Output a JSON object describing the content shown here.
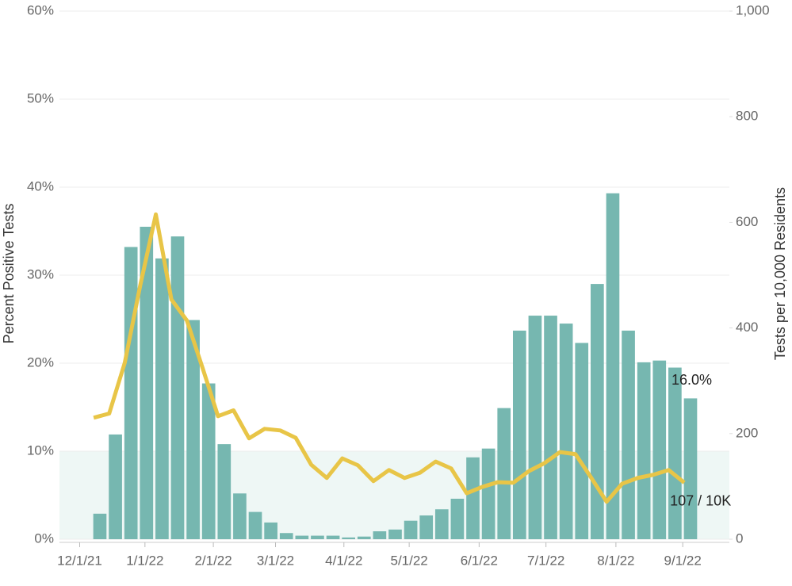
{
  "chart_data": {
    "type": "bar_line",
    "y_label": "Percent Positive Tests",
    "y2_label": "Tests per 10,000 Residents",
    "xlim": [
      -1.3,
      41.8
    ],
    "xticks": [
      {
        "value": 0,
        "label": "12/1/21"
      },
      {
        "value": 4.2,
        "label": "1/1/22"
      },
      {
        "value": 8.6,
        "label": "2/1/22"
      },
      {
        "value": 12.6,
        "label": "3/1/22"
      },
      {
        "value": 17.0,
        "label": "4/1/22"
      },
      {
        "value": 21.2,
        "label": "5/1/22"
      },
      {
        "value": 25.7,
        "label": "6/1/22"
      },
      {
        "value": 30.0,
        "label": "7/1/22"
      },
      {
        "value": 34.5,
        "label": "8/1/22"
      },
      {
        "value": 38.8,
        "label": "9/1/22"
      }
    ],
    "ylim": [
      0,
      60
    ],
    "yticks": [
      {
        "value": 0,
        "label": "0%"
      },
      {
        "value": 10,
        "label": "10%"
      },
      {
        "value": 20,
        "label": "20%"
      },
      {
        "value": 30,
        "label": "30%"
      },
      {
        "value": 40,
        "label": "40%"
      },
      {
        "value": 50,
        "label": "50%"
      },
      {
        "value": 60,
        "label": "60%"
      }
    ],
    "y2lim": [
      0,
      1000
    ],
    "y2ticks": [
      0,
      200,
      400,
      600,
      800,
      {
        "value": 1000,
        "label": "1,000"
      }
    ],
    "grid": true,
    "band": {
      "range": [
        0,
        10
      ],
      "color": "#eef7f5"
    },
    "series": [
      {
        "type": "bar",
        "color": "#76b7b0",
        "end_label": "16.0%",
        "x": [
          1.3,
          2.3,
          3.3,
          4.3,
          5.3,
          6.3,
          7.3,
          8.3,
          9.3,
          10.3,
          11.3,
          12.3,
          13.3,
          14.3,
          15.3,
          16.3,
          17.3,
          18.3,
          19.3,
          20.3,
          21.3,
          22.3,
          23.3,
          24.3,
          25.3,
          26.3,
          27.3,
          28.3,
          29.3,
          30.3,
          31.3,
          32.3,
          33.3,
          34.3,
          35.3,
          36.3,
          37.3,
          38.3,
          39.3
        ],
        "values": [
          2.9,
          11.9,
          33.2,
          35.5,
          31.9,
          34.4,
          24.9,
          17.7,
          10.8,
          5.2,
          3.1,
          1.9,
          0.7,
          0.4,
          0.4,
          0.4,
          0.2,
          0.3,
          0.9,
          1.1,
          2.1,
          2.7,
          3.4,
          4.6,
          9.3,
          10.3,
          14.9,
          23.7,
          25.4,
          25.4,
          24.5,
          22.3,
          29.0,
          39.3,
          23.7,
          20.1,
          20.3,
          19.5,
          16.0
        ]
      },
      {
        "type": "line",
        "axis": "y2",
        "color": "#e8c547",
        "end_label": "107 / 10K",
        "x": [
          0.9,
          1.9,
          2.9,
          3.9,
          4.9,
          5.9,
          6.9,
          7.9,
          8.9,
          9.9,
          10.9,
          11.9,
          12.9,
          13.9,
          14.9,
          15.9,
          16.9,
          17.9,
          18.9,
          19.9,
          20.9,
          21.9,
          22.9,
          23.9,
          24.9,
          25.9,
          26.9,
          27.9,
          28.9,
          29.9,
          30.9,
          31.9,
          32.9,
          33.9,
          34.9,
          35.9,
          36.9,
          37.9,
          38.9
        ],
        "values": [
          230,
          238,
          334,
          481,
          615,
          454,
          414,
          325,
          233,
          244,
          191,
          209,
          206,
          192,
          141,
          116,
          153,
          140,
          110,
          131,
          116,
          126,
          147,
          134,
          87,
          99,
          108,
          107,
          129,
          144,
          165,
          161,
          117,
          71,
          105,
          116,
          122,
          131,
          107
        ]
      }
    ]
  }
}
